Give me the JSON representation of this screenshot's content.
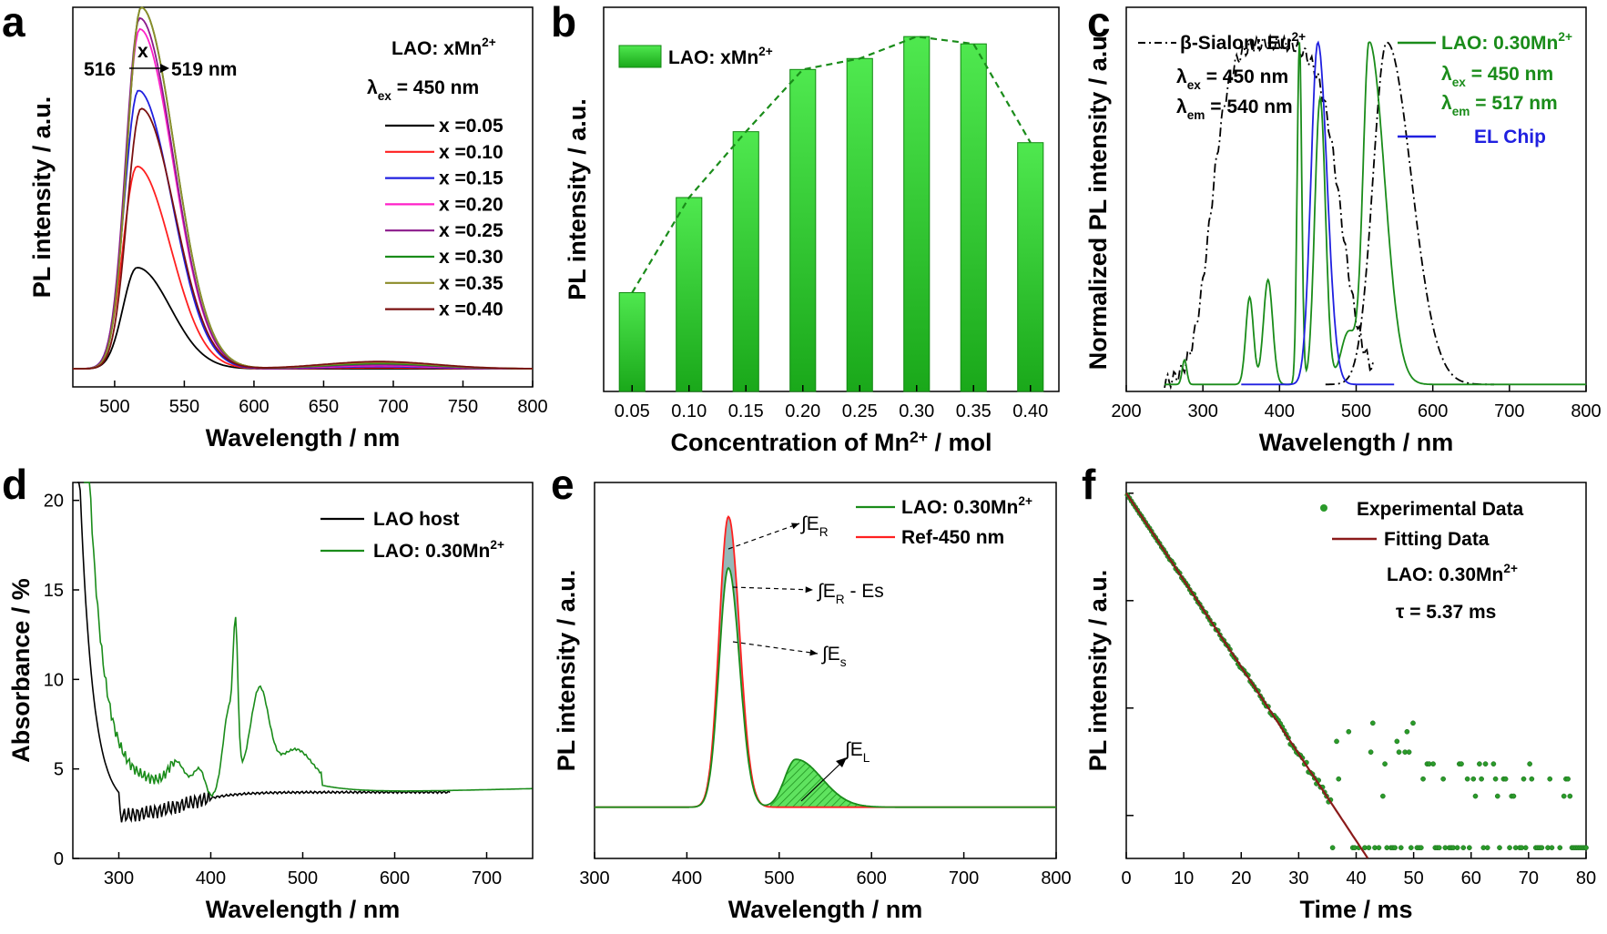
{
  "figure": {
    "panels": [
      {
        "letter": "a",
        "chart_data": {
          "type": "line",
          "xlabel": "Wavelength / nm",
          "ylabel": "PL intensity / a.u.",
          "xlim": [
            470,
            800
          ],
          "ylim": [
            0,
            1.05
          ],
          "xticks": [
            500,
            550,
            600,
            650,
            700,
            750,
            800
          ],
          "legend_title": "LAO: xMn²⁺",
          "excitation": "λex = 450 nm",
          "shift_annotation": {
            "x": "x",
            "from": "516",
            "to": "519 nm"
          },
          "series": [
            {
              "name": "x =0.05",
              "color": "#000000",
              "peak": 516,
              "values": [
                0.28
              ]
            },
            {
              "name": "x =0.10",
              "color": "#ff2020",
              "peak": 516,
              "values": [
                0.56
              ]
            },
            {
              "name": "x =0.15",
              "color": "#2020e0",
              "peak": 517,
              "values": [
                0.77
              ]
            },
            {
              "name": "x =0.20",
              "color": "#ff20c8",
              "peak": 518,
              "values": [
                0.94
              ]
            },
            {
              "name": "x =0.25",
              "color": "#8b1a8b",
              "peak": 518,
              "values": [
                0.97
              ]
            },
            {
              "name": "x =0.30",
              "color": "#1a8c1a",
              "peak": 519,
              "values": [
                1.0
              ]
            },
            {
              "name": "x =0.35",
              "color": "#8c8c2a",
              "peak": 519,
              "values": [
                1.0
              ]
            },
            {
              "name": "x =0.40",
              "color": "#7a1010",
              "peak": 519,
              "values": [
                0.72
              ]
            }
          ]
        }
      },
      {
        "letter": "b",
        "chart_data": {
          "type": "bar",
          "xlabel": "Concentration of Mn²⁺ / mol",
          "ylabel": "PL intensity / a.u.",
          "legend": "LAO: xMn²⁺",
          "categories": [
            "0.05",
            "0.10",
            "0.15",
            "0.20",
            "0.25",
            "0.30",
            "0.35",
            "0.40"
          ],
          "values": [
            0.27,
            0.53,
            0.71,
            0.88,
            0.91,
            0.97,
            0.95,
            0.68
          ],
          "ylim": [
            0,
            1.05
          ],
          "bar_color": "#22cc22",
          "trend_line_color": "#1a8c1a"
        }
      },
      {
        "letter": "c",
        "chart_data": {
          "type": "line",
          "xlabel": "Wavelength / nm",
          "ylabel": "Normalized PL intensity / a.u.",
          "xlim": [
            200,
            800
          ],
          "ylim": [
            0,
            1.1
          ],
          "xticks": [
            200,
            300,
            400,
            500,
            600,
            700,
            800
          ],
          "series": [
            {
              "name": "β-Sialon: Eu²⁺",
              "color": "#000000",
              "style": "dashdot"
            },
            {
              "name": "LAO: 0.30Mn²⁺",
              "color": "#1a8c1a",
              "style": "solid"
            },
            {
              "name": "EL Chip",
              "color": "#2020e0",
              "style": "solid"
            }
          ],
          "annotations_black": [
            "λex = 450 nm",
            "λem = 540 nm"
          ],
          "annotations_green": [
            "λex = 450 nm",
            "λem = 517 nm"
          ]
        }
      },
      {
        "letter": "d",
        "chart_data": {
          "type": "line",
          "xlabel": "Wavelength / nm",
          "ylabel": "Absorbance / %",
          "xlim": [
            250,
            750
          ],
          "ylim": [
            0,
            21
          ],
          "xticks": [
            300,
            400,
            500,
            600,
            700
          ],
          "yticks": [
            0,
            5,
            10,
            15,
            20
          ],
          "series": [
            {
              "name": "LAO host",
              "color": "#000000"
            },
            {
              "name": "LAO: 0.30Mn²⁺",
              "color": "#1a8c1a"
            }
          ]
        }
      },
      {
        "letter": "e",
        "chart_data": {
          "type": "area",
          "xlabel": "Wavelength / nm",
          "ylabel": "PL intensity / a.u.",
          "xlim": [
            300,
            800
          ],
          "ylim": [
            0,
            1.1
          ],
          "xticks": [
            300,
            400,
            500,
            600,
            700,
            800
          ],
          "series": [
            {
              "name": "LAO: 0.30Mn²⁺",
              "color": "#1a8c1a"
            },
            {
              "name": "Ref-450 nm",
              "color": "#ff2020"
            }
          ],
          "annotations": [
            "∫ER",
            "∫ER - Es",
            "∫Es",
            "∫EL"
          ]
        }
      },
      {
        "letter": "f",
        "chart_data": {
          "type": "scatter",
          "xlabel": "Time / ms",
          "ylabel": "PL intensity / a.u.",
          "xlim": [
            0,
            80
          ],
          "xticks": [
            0,
            10,
            20,
            30,
            40,
            50,
            60,
            70,
            80
          ],
          "y_scale": "log",
          "series": [
            {
              "name": "Experimental Data",
              "color": "#1a8c1a"
            },
            {
              "name": "Fitting Data",
              "color": "#8b1a1a"
            }
          ],
          "sample": "LAO: 0.30Mn²⁺",
          "lifetime": "τ = 5.37 ms"
        }
      }
    ]
  }
}
